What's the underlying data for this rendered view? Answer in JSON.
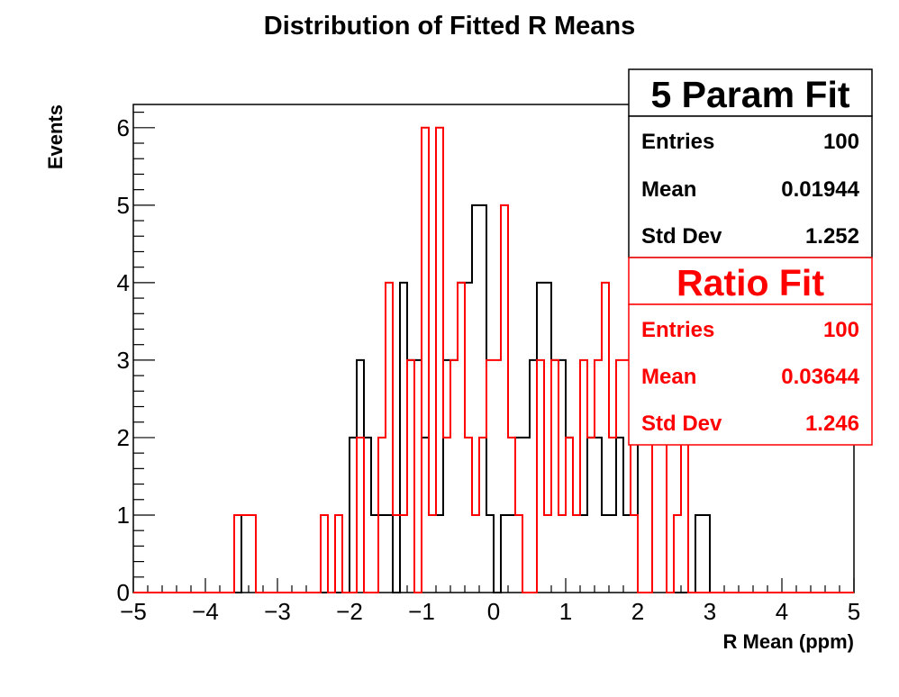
{
  "chart_data": {
    "type": "histogram",
    "title": "Distribution of Fitted R Means",
    "xlabel": "R Mean (ppm)",
    "ylabel": "Events",
    "xlim": [
      -5,
      5
    ],
    "ylim": [
      0,
      6.3
    ],
    "x_ticks": [
      "−5",
      "−4",
      "−3",
      "−2",
      "−1",
      "0",
      "1",
      "2",
      "3",
      "4",
      "5"
    ],
    "x_tick_values": [
      -5,
      -4,
      -3,
      -2,
      -1,
      0,
      1,
      2,
      3,
      4,
      5
    ],
    "y_ticks": [
      "0",
      "1",
      "2",
      "3",
      "4",
      "5",
      "6"
    ],
    "y_tick_values": [
      0,
      1,
      2,
      3,
      4,
      5,
      6
    ],
    "bins": 100,
    "series": [
      {
        "name": "5 Param Fit",
        "color": "#000000",
        "counts": [
          0,
          0,
          0,
          0,
          0,
          0,
          0,
          0,
          0,
          0,
          0,
          0,
          0,
          0,
          0,
          1,
          1,
          0,
          0,
          0,
          0,
          0,
          0,
          0,
          0,
          0,
          0,
          0,
          0,
          0,
          2,
          3,
          2,
          1,
          1,
          1,
          0,
          4,
          3,
          3,
          2,
          1,
          1,
          3,
          3,
          4,
          4,
          5,
          5,
          1,
          0,
          1,
          1,
          2,
          2,
          3,
          4,
          4,
          3,
          3,
          2,
          1,
          1,
          2,
          2,
          1,
          1,
          2,
          1,
          1,
          2,
          2,
          2,
          2,
          0,
          0,
          0,
          0,
          1,
          1,
          0,
          0,
          0,
          0,
          0,
          0,
          0,
          0,
          0,
          0,
          0,
          0,
          0,
          0,
          0,
          0,
          0,
          0,
          0,
          0
        ]
      },
      {
        "name": "Ratio Fit",
        "color": "#ff0000",
        "counts": [
          0,
          0,
          0,
          0,
          0,
          0,
          0,
          0,
          0,
          0,
          0,
          0,
          0,
          0,
          1,
          1,
          1,
          0,
          0,
          0,
          0,
          0,
          0,
          0,
          0,
          0,
          1,
          0,
          1,
          0,
          0,
          2,
          0,
          0,
          2,
          4,
          1,
          1,
          3,
          0,
          6,
          1,
          6,
          2,
          3,
          4,
          2,
          1,
          2,
          3,
          3,
          5,
          2,
          1,
          0,
          0,
          3,
          1,
          3,
          1,
          2,
          1,
          3,
          2,
          3,
          4,
          2,
          3,
          3,
          1,
          0,
          0,
          2,
          2,
          0,
          1,
          2,
          0,
          0,
          0,
          0,
          0,
          0,
          0,
          0,
          0,
          0,
          0,
          0,
          0,
          0,
          0,
          0,
          0,
          0,
          0,
          0,
          0,
          0,
          0
        ]
      }
    ]
  },
  "stats_boxes": [
    {
      "title": "5 Param Fit",
      "color": "#000000",
      "rows": [
        {
          "label": "Entries",
          "value": "100"
        },
        {
          "label": "Mean",
          "value": "0.01944"
        },
        {
          "label": "Std Dev",
          "value": "1.252"
        }
      ]
    },
    {
      "title": "Ratio Fit",
      "color": "#ff0000",
      "rows": [
        {
          "label": "Entries",
          "value": "100"
        },
        {
          "label": "Mean",
          "value": "0.03644"
        },
        {
          "label": "Std Dev",
          "value": "1.246"
        }
      ]
    }
  ]
}
